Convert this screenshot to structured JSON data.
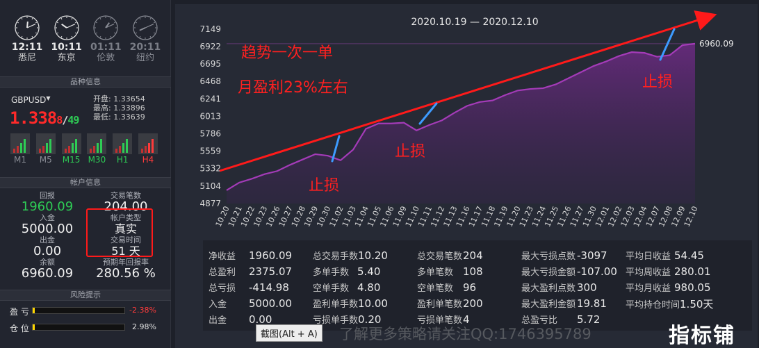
{
  "clocks": [
    {
      "time": "12:11",
      "city": "悉尼",
      "hour": 12,
      "minute": 11,
      "dim": false
    },
    {
      "time": "10:11",
      "city": "东京",
      "hour": 10,
      "minute": 11,
      "dim": false
    },
    {
      "time": "01:11",
      "city": "伦敦",
      "hour": 1,
      "minute": 11,
      "dim": true
    },
    {
      "time": "20:11",
      "city": "纽约",
      "hour": 20,
      "minute": 11,
      "dim": true
    }
  ],
  "sections": {
    "instrument": "品种信息",
    "account": "帐户信息",
    "risk": "风险提示"
  },
  "instrument": {
    "symbol": "GBPUSD",
    "price_main": "1.338",
    "price_small1": "8",
    "price_sep": "/",
    "price_small2": "49",
    "open_label": "开盘:",
    "open": "1.33654",
    "high_label": "最高:",
    "high": "1.33896",
    "low_label": "最低:",
    "low": "1.33639"
  },
  "timeframes": [
    {
      "label": "M1",
      "state": "dim"
    },
    {
      "label": "M5",
      "state": "dim"
    },
    {
      "label": "M15",
      "state": "g"
    },
    {
      "label": "M30",
      "state": "g"
    },
    {
      "label": "H1",
      "state": "g"
    },
    {
      "label": "H4",
      "state": "r"
    }
  ],
  "account": {
    "profit_label": "回报",
    "profit": "1960.09",
    "trades_label": "交易笔数",
    "trades": "204.00",
    "deposit_label": "入金",
    "deposit": "5000.00",
    "type_label": "帐户类型",
    "type": "真实",
    "withdraw_label": "出金",
    "withdraw": "0.00",
    "duration_label": "交易时间",
    "duration": "51 天",
    "balance_label": "余额",
    "balance": "6960.09",
    "annual_label": "预期年回报率",
    "annual": "280.56 %"
  },
  "risk": {
    "margin_label": "盈  亏",
    "margin_value": "-2.38%",
    "position_label": "仓  位",
    "position_value": "2.98%"
  },
  "chart_data": {
    "type": "area",
    "title": "2020.10.19 — 2020.12.10",
    "y_ticks": [
      "7149",
      "6922",
      "6695",
      "6468",
      "6241",
      "6013",
      "5786",
      "5559",
      "5332",
      "5104",
      "4877"
    ],
    "ylim": [
      4877,
      7149
    ],
    "x": [
      "10.20",
      "10.21",
      "10.22",
      "10.23",
      "10.26",
      "10.27",
      "10.28",
      "10.29",
      "10.30",
      "11.02",
      "11.03",
      "11.04",
      "11.05",
      "11.06",
      "11.09",
      "11.10",
      "11.11",
      "11.12",
      "11.13",
      "11.16",
      "11.17",
      "11.18",
      "11.19",
      "11.20",
      "11.23",
      "11.24",
      "11.25",
      "11.26",
      "11.27",
      "11.30",
      "12.01",
      "12.02",
      "12.03",
      "12.04",
      "12.07",
      "12.08",
      "12.09",
      "12.10"
    ],
    "values": [
      5050,
      5150,
      5200,
      5260,
      5300,
      5380,
      5450,
      5520,
      5500,
      5440,
      5580,
      5850,
      5920,
      5920,
      5930,
      5830,
      5900,
      5960,
      6060,
      6150,
      6200,
      6220,
      6290,
      6350,
      6370,
      6380,
      6430,
      6510,
      6590,
      6670,
      6730,
      6800,
      6850,
      6840,
      6790,
      6810,
      6940,
      6960.09
    ],
    "last_label": "6960.09",
    "annotations": [
      "趋势一次一单",
      "月盈利23%左右",
      "止损",
      "止损",
      "止损"
    ],
    "colors": {
      "line": "#a43bb8",
      "fill": "#6a2a80",
      "trend": "#ff1a1a",
      "stop_arrow": "#3d9bff"
    }
  },
  "stats": {
    "net_label": "净收益",
    "net": "1960.09",
    "gross_profit_label": "总盈利",
    "gross_profit": "2375.07",
    "gross_loss_label": "总亏损",
    "gross_loss": "-414.98",
    "deposit_label": "入金",
    "deposit": "5000.00",
    "withdraw_label": "出金",
    "withdraw": "0.00",
    "total_lots_label": "总交易手数",
    "total_lots": "10.20",
    "long_lots_label": "多单手数",
    "long_lots": "5.40",
    "short_lots_label": "空单手数",
    "short_lots": "4.80",
    "win_lots_label": "盈利单手数",
    "win_lots": "10.00",
    "loss_lots_label": "亏损单手数",
    "loss_lots": "0.20",
    "total_trades_label": "总交易笔数",
    "total_trades": "204",
    "long_trades_label": "多单笔数",
    "long_trades": "108",
    "short_trades_label": "空单笔数",
    "short_trades": "96",
    "win_trades_label": "盈利单笔数",
    "win_trades": "200",
    "loss_trades_label": "亏损单笔数",
    "loss_trades": "4",
    "max_loss_pts_label": "最大亏损点数",
    "max_loss_pts": "-3097",
    "max_loss_amt_label": "最大亏损金额",
    "max_loss_amt": "-107.00",
    "max_win_pts_label": "最大盈利点数",
    "max_win_pts": "300",
    "max_win_amt_label": "最大盈利金额",
    "max_win_amt": "19.81",
    "pl_ratio_label": "总盈亏比",
    "pl_ratio": "5.72",
    "avg_day_label": "平均日收益",
    "avg_day": "54.45",
    "avg_week_label": "平均周收益",
    "avg_week": "280.01",
    "avg_month_label": "平均月收益",
    "avg_month": "980.05",
    "avg_hold_label": "平均持仓时间",
    "avg_hold": "1.50天"
  },
  "tooltip": "截图(Alt + A)",
  "watermark": "了解更多策略请关注QQ:1746395789",
  "brand": "指标铺"
}
